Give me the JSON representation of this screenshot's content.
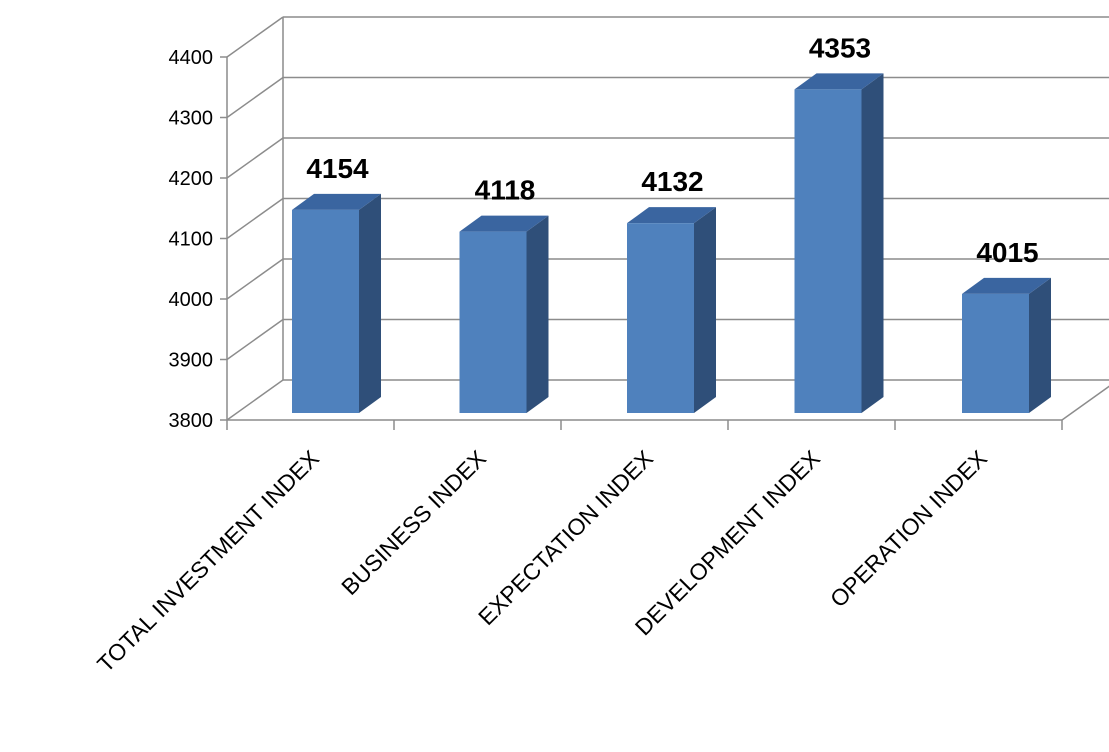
{
  "chart_data": {
    "type": "bar",
    "style": "3d-column",
    "categories": [
      "TOTAL INVESTMENT INDEX",
      "BUSINESS INDEX",
      "EXPECTATION INDEX",
      "DEVELOPMENT INDEX",
      "OPERATION INDEX"
    ],
    "values": [
      4154,
      4118,
      4132,
      4353,
      4015
    ],
    "data_labels": [
      "4154",
      "4118",
      "4132",
      "4353",
      "4015"
    ],
    "yticks": [
      3800,
      3900,
      4000,
      4100,
      4200,
      4300,
      4400
    ],
    "ytick_labels": [
      "3800",
      "3900",
      "4000",
      "4100",
      "4200",
      "4300",
      "4400"
    ],
    "ylim": [
      3800,
      4400
    ],
    "grid": true,
    "legend": "none",
    "colors": {
      "bar_front": "#4F81BD",
      "bar_side": "#2F4F79",
      "bar_top": "#3A65A0",
      "grid": "#8C8C8C",
      "axis": "#8C8C8C"
    }
  }
}
